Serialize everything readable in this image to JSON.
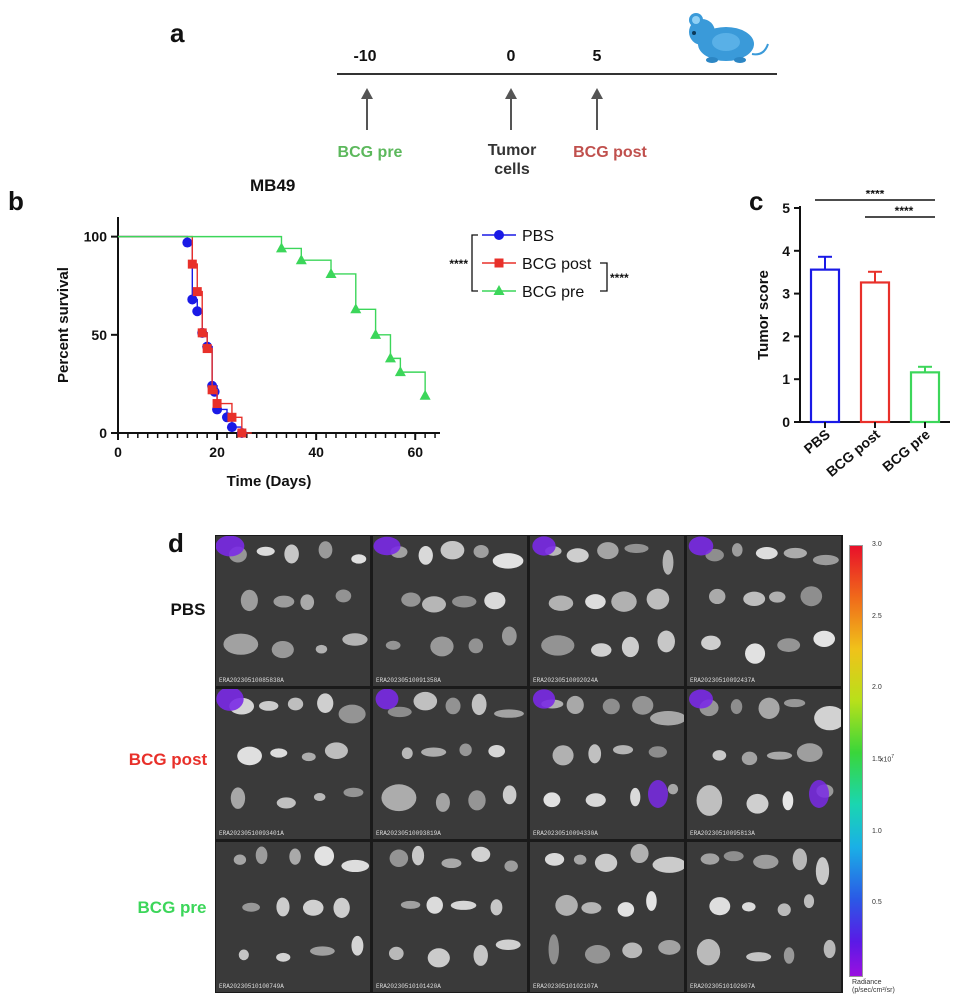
{
  "panels": {
    "a": {
      "letter": "a",
      "timeline": {
        "ticks": [
          {
            "label": "-10",
            "value": -10
          },
          {
            "label": "0",
            "value": 0
          },
          {
            "label": "5",
            "value": 5
          }
        ],
        "events": [
          {
            "label": "BCG pre",
            "color": "#5cb85c"
          },
          {
            "label_line1": "Tumor",
            "label_line2": "cells",
            "color": "#333333"
          },
          {
            "label": "BCG post",
            "color": "#c0504d"
          }
        ],
        "mouse_icon": "mouse-icon"
      }
    },
    "b": {
      "letter": "b",
      "subtitle": "MB49"
    },
    "c": {
      "letter": "c"
    },
    "d": {
      "letter": "d",
      "rows": [
        {
          "label": "PBS",
          "color": "#111111",
          "ids": [
            "ERA20230510085838A",
            "ERA20230510091358A",
            "ERA20230510092024A",
            "ERA20230510092437A"
          ]
        },
        {
          "label": "BCG post",
          "color": "#e8302a",
          "ids": [
            "ERA20230510093401A",
            "ERA20230510093819A",
            "ERA20230510094330A",
            "ERA20230510095813A"
          ]
        },
        {
          "label": "BCG pre",
          "color": "#3cd65a",
          "ids": [
            "ERA20230510100749A",
            "ERA20230510101420A",
            "ERA20230510102107A",
            "ERA20230510102607A"
          ]
        }
      ],
      "colorbar": {
        "ticks": [
          "3.0",
          "2.5",
          "2.0",
          "1.5",
          "1.0",
          "0.5"
        ],
        "exponent_label": "x10",
        "exponent": "7",
        "title_line1": "Radiance",
        "title_line2": "(p/sec/cm²/sr)",
        "min": 0,
        "max": 3.0
      }
    }
  },
  "chart_data": [
    {
      "type": "line",
      "panel": "b",
      "title": "MB49",
      "xlabel": "Time (Days)",
      "ylabel": "Percent survival",
      "xlim": [
        0,
        65
      ],
      "ylim": [
        0,
        110
      ],
      "xticks": [
        0,
        20,
        40,
        60
      ],
      "yticks": [
        0,
        50,
        100
      ],
      "significance": [
        "****",
        "****"
      ],
      "series": [
        {
          "name": "PBS",
          "color": "#1a1ae6",
          "marker": "circle",
          "points": [
            [
              0,
              100
            ],
            [
              14,
              100
            ],
            [
              14,
              97
            ],
            [
              15,
              97
            ],
            [
              15,
              68
            ],
            [
              16,
              68
            ],
            [
              16,
              62
            ],
            [
              17,
              62
            ],
            [
              17,
              51
            ],
            [
              18,
              51
            ],
            [
              18,
              44
            ],
            [
              19,
              44
            ],
            [
              19,
              24
            ],
            [
              20,
              24
            ],
            [
              20,
              12
            ],
            [
              22,
              12
            ],
            [
              22,
              8
            ],
            [
              23,
              8
            ],
            [
              23,
              3
            ],
            [
              25,
              3
            ],
            [
              25,
              0
            ],
            [
              26,
              0
            ]
          ],
          "markers": [
            [
              14,
              97
            ],
            [
              15,
              68
            ],
            [
              16,
              62
            ],
            [
              17,
              51
            ],
            [
              18,
              44
            ],
            [
              19,
              24
            ],
            [
              19.5,
              21
            ],
            [
              20,
              12
            ],
            [
              22,
              8
            ],
            [
              23,
              3
            ],
            [
              25,
              0
            ]
          ]
        },
        {
          "name": "BCG post",
          "color": "#e8302a",
          "marker": "square",
          "points": [
            [
              0,
              100
            ],
            [
              15,
              100
            ],
            [
              15,
              86
            ],
            [
              16,
              86
            ],
            [
              16,
              72
            ],
            [
              17,
              72
            ],
            [
              17,
              51
            ],
            [
              18,
              51
            ],
            [
              18,
              43
            ],
            [
              19,
              43
            ],
            [
              19,
              22
            ],
            [
              20,
              22
            ],
            [
              20,
              15
            ],
            [
              23,
              15
            ],
            [
              23,
              8
            ],
            [
              25,
              8
            ],
            [
              25,
              0
            ],
            [
              27,
              0
            ]
          ],
          "markers": [
            [
              15,
              86
            ],
            [
              16,
              72
            ],
            [
              17,
              51
            ],
            [
              18,
              43
            ],
            [
              19,
              22
            ],
            [
              20,
              15
            ],
            [
              23,
              8
            ],
            [
              25,
              0
            ]
          ]
        },
        {
          "name": "BCG pre",
          "color": "#3cd65a",
          "marker": "triangle",
          "points": [
            [
              0,
              100
            ],
            [
              33,
              100
            ],
            [
              33,
              94
            ],
            [
              37,
              94
            ],
            [
              37,
              88
            ],
            [
              43,
              88
            ],
            [
              43,
              81
            ],
            [
              48,
              81
            ],
            [
              48,
              63
            ],
            [
              52,
              63
            ],
            [
              52,
              50
            ],
            [
              55,
              50
            ],
            [
              55,
              38
            ],
            [
              57,
              38
            ],
            [
              57,
              31
            ],
            [
              62,
              31
            ],
            [
              62,
              19
            ]
          ],
          "markers": [
            [
              33,
              94
            ],
            [
              37,
              88
            ],
            [
              43,
              81
            ],
            [
              48,
              63
            ],
            [
              52,
              50
            ],
            [
              55,
              38
            ],
            [
              57,
              31
            ],
            [
              62,
              19
            ]
          ]
        }
      ]
    },
    {
      "type": "bar",
      "panel": "c",
      "ylabel": "Tumor score",
      "ylim": [
        0,
        5
      ],
      "yticks": [
        0,
        1,
        2,
        3,
        4,
        5
      ],
      "categories": [
        "PBS",
        "BCG post",
        "BCG pre"
      ],
      "values": [
        3.56,
        3.26,
        1.16
      ],
      "errors": [
        0.3,
        0.25,
        0.13
      ],
      "colors": [
        "#1a1ae6",
        "#e8302a",
        "#3cd65a"
      ],
      "significance": [
        {
          "from": 0,
          "to": 2,
          "label": "****"
        },
        {
          "from": 1,
          "to": 2,
          "label": "****"
        }
      ]
    }
  ]
}
